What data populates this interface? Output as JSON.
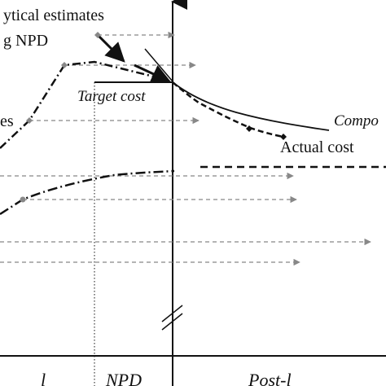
{
  "labels": {
    "estimates_line1": "ytical estimates",
    "estimates_line2": "g NPD",
    "target_cost": "Target cost",
    "left_fragment": "es",
    "compo_fragment": "Compo",
    "actual_cost": "Actual cost",
    "bottom_left_fragment": "l",
    "npd_phase": "NPD",
    "bottom_right_fragment": "Post-l"
  },
  "colors": {
    "ink": "#111111",
    "dashed_arrow": "#888888",
    "marker": "#888888"
  }
}
